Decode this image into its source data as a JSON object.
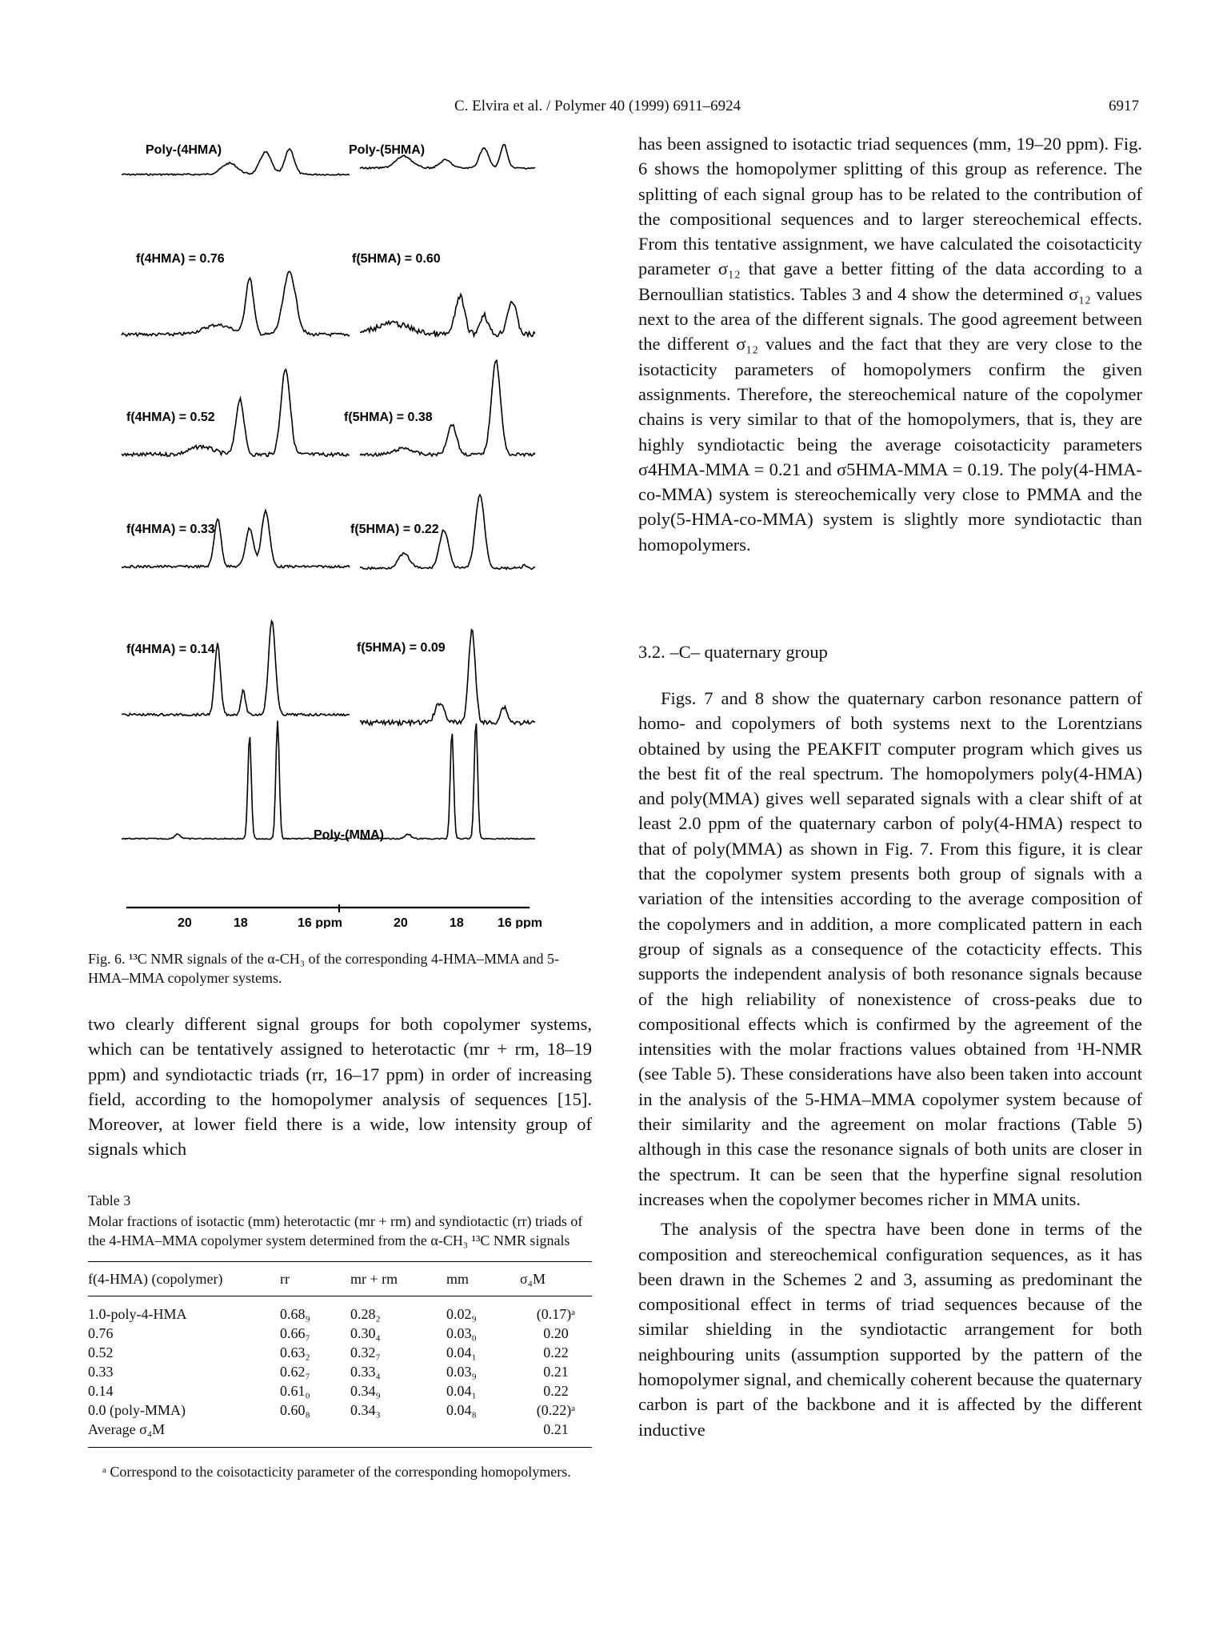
{
  "header": {
    "journal": "C. Elvira et al. / Polymer 40 (1999) 6911–6924",
    "page_number": "6917"
  },
  "figure": {
    "left_title": "Poly-(4HMA)",
    "right_title": "Poly-(5HMA)",
    "left_labels": [
      "f(4HMA) = 0.76",
      "f(4HMA) = 0.52",
      "f(4HMA) = 0.33",
      "f(4HMA) = 0.14"
    ],
    "right_labels": [
      "f(5HMA) = 0.60",
      "f(5HMA) = 0.38",
      "f(5HMA) = 0.22",
      "f(5HMA) = 0.09"
    ],
    "pmma_label": "Poly-(MMA)",
    "axis_left": [
      "20",
      "18",
      "16 ppm"
    ],
    "axis_right": [
      "20",
      "18",
      "16 ppm"
    ],
    "caption": "Fig. 6. ¹³C NMR signals of the α-CH₃ of the corresponding 4-HMA–MMA and 5-HMA–MMA copolymer systems."
  },
  "left_paragraph": "two clearly different signal groups for both copolymer systems, which can be tentatively assigned to heterotactic (mr + rm, 18–19 ppm) and syndiotactic triads (rr, 16–17 ppm) in order of increasing field, according to the homopolymer analysis of sequences [15]. Moreover, at lower field there is a wide, low intensity group of signals which",
  "table3": {
    "label": "Table 3",
    "title": "Molar fractions of isotactic (mm) heterotactic (mr + rm) and syndiotactic (rr) triads of the 4-HMA–MMA copolymer system determined from the α-CH₃ ¹³C NMR signals",
    "columns": [
      "f(4-HMA) (copolymer)",
      "rr",
      "mr + rm",
      "mm",
      "σ₄M"
    ],
    "rows": [
      [
        "1.0-poly-4-HMA",
        "0.68₉",
        "0.28₂",
        "0.02₉",
        "(0.17)ᵃ"
      ],
      [
        "0.76",
        "0.66₇",
        "0.30₄",
        "0.03₀",
        "0.20"
      ],
      [
        "0.52",
        "0.63₂",
        "0.32₇",
        "0.04₁",
        "0.22"
      ],
      [
        "0.33",
        "0.62₇",
        "0.33₄",
        "0.03₉",
        "0.21"
      ],
      [
        "0.14",
        "0.61₀",
        "0.34₉",
        "0.04₁",
        "0.22"
      ],
      [
        "0.0 (poly-MMA)",
        "0.60₈",
        "0.34₃",
        "0.04₈",
        "(0.22)ᵃ"
      ],
      [
        "Average σ₄M",
        "",
        "",
        "",
        "0.21"
      ]
    ],
    "footnote": "ᵃ Correspond to the coisotacticity parameter of the corresponding homopolymers."
  },
  "right_top_paragraph": "has been assigned to isotactic triad sequences (mm, 19–20 ppm). Fig. 6 shows the homopolymer splitting of this group as reference. The splitting of each signal group has to be related to the contribution of the compositional sequences and to larger stereochemical effects. From this tentative assignment, we have calculated the coisotacticity parameter σ₁₂ that gave a better fitting of the data according to a Bernoullian statistics. Tables 3 and 4 show the determined σ₁₂ values next to the area of the different signals. The good agreement between the different σ₁₂ values and the fact that they are very close to the isotacticity parameters of homopolymers confirm the given assignments. Therefore, the stereochemical nature of the copolymer chains is very similar to that of the homopolymers, that is, they are highly syndiotactic being the average coisotacticity parameters σ4HMA-MMA = 0.21 and σ5HMA-MMA = 0.19. The poly(4-HMA-co-MMA) system is stereochemically very close to PMMA and the poly(5-HMA-co-MMA) system is slightly more syndiotactic than homopolymers.",
  "section_heading": "3.2. –C– quaternary group",
  "right_bottom_paragraph_1": "Figs. 7 and 8 show the quaternary carbon resonance pattern of homo- and copolymers of both systems next to the Lorentzians obtained by using the PEAKFIT computer program which gives us the best fit of the real spectrum. The homopolymers poly(4-HMA) and poly(MMA) gives well separated signals with a clear shift of at least 2.0 ppm of the quaternary carbon of poly(4-HMA) respect to that of poly(MMA) as shown in Fig. 7. From this figure, it is clear that the copolymer system presents both group of signals with a variation of the intensities according to the average composition of the copolymers and in addition, a more complicated pattern in each group of signals as a consequence of the cotacticity effects. This supports the independent analysis of both resonance signals because of the high reliability of nonexistence of cross-peaks due to compositional effects which is confirmed by the agreement of the intensities with the molar fractions values obtained from ¹H-NMR (see Table 5). These considerations have also been taken into account in the analysis of the 5-HMA–MMA copolymer system because of their similarity and the agreement on molar fractions (Table 5) although in this case the resonance signals of both units are closer in the spectrum. It can be seen that the hyperfine signal resolution increases when the copolymer becomes richer in MMA units.",
  "right_bottom_paragraph_2": "The analysis of the spectra have been done in terms of the composition and stereochemical configuration sequences, as it has been drawn in the Schemes 2 and 3, assuming as predominant the compositional effect in terms of triad sequences because of the similar shielding in the syndiotactic arrangement for both neighbouring units (assumption supported by the pattern of the homopolymer signal, and chemically coherent because the quaternary carbon is part of the backbone and it is affected by the different inductive"
}
